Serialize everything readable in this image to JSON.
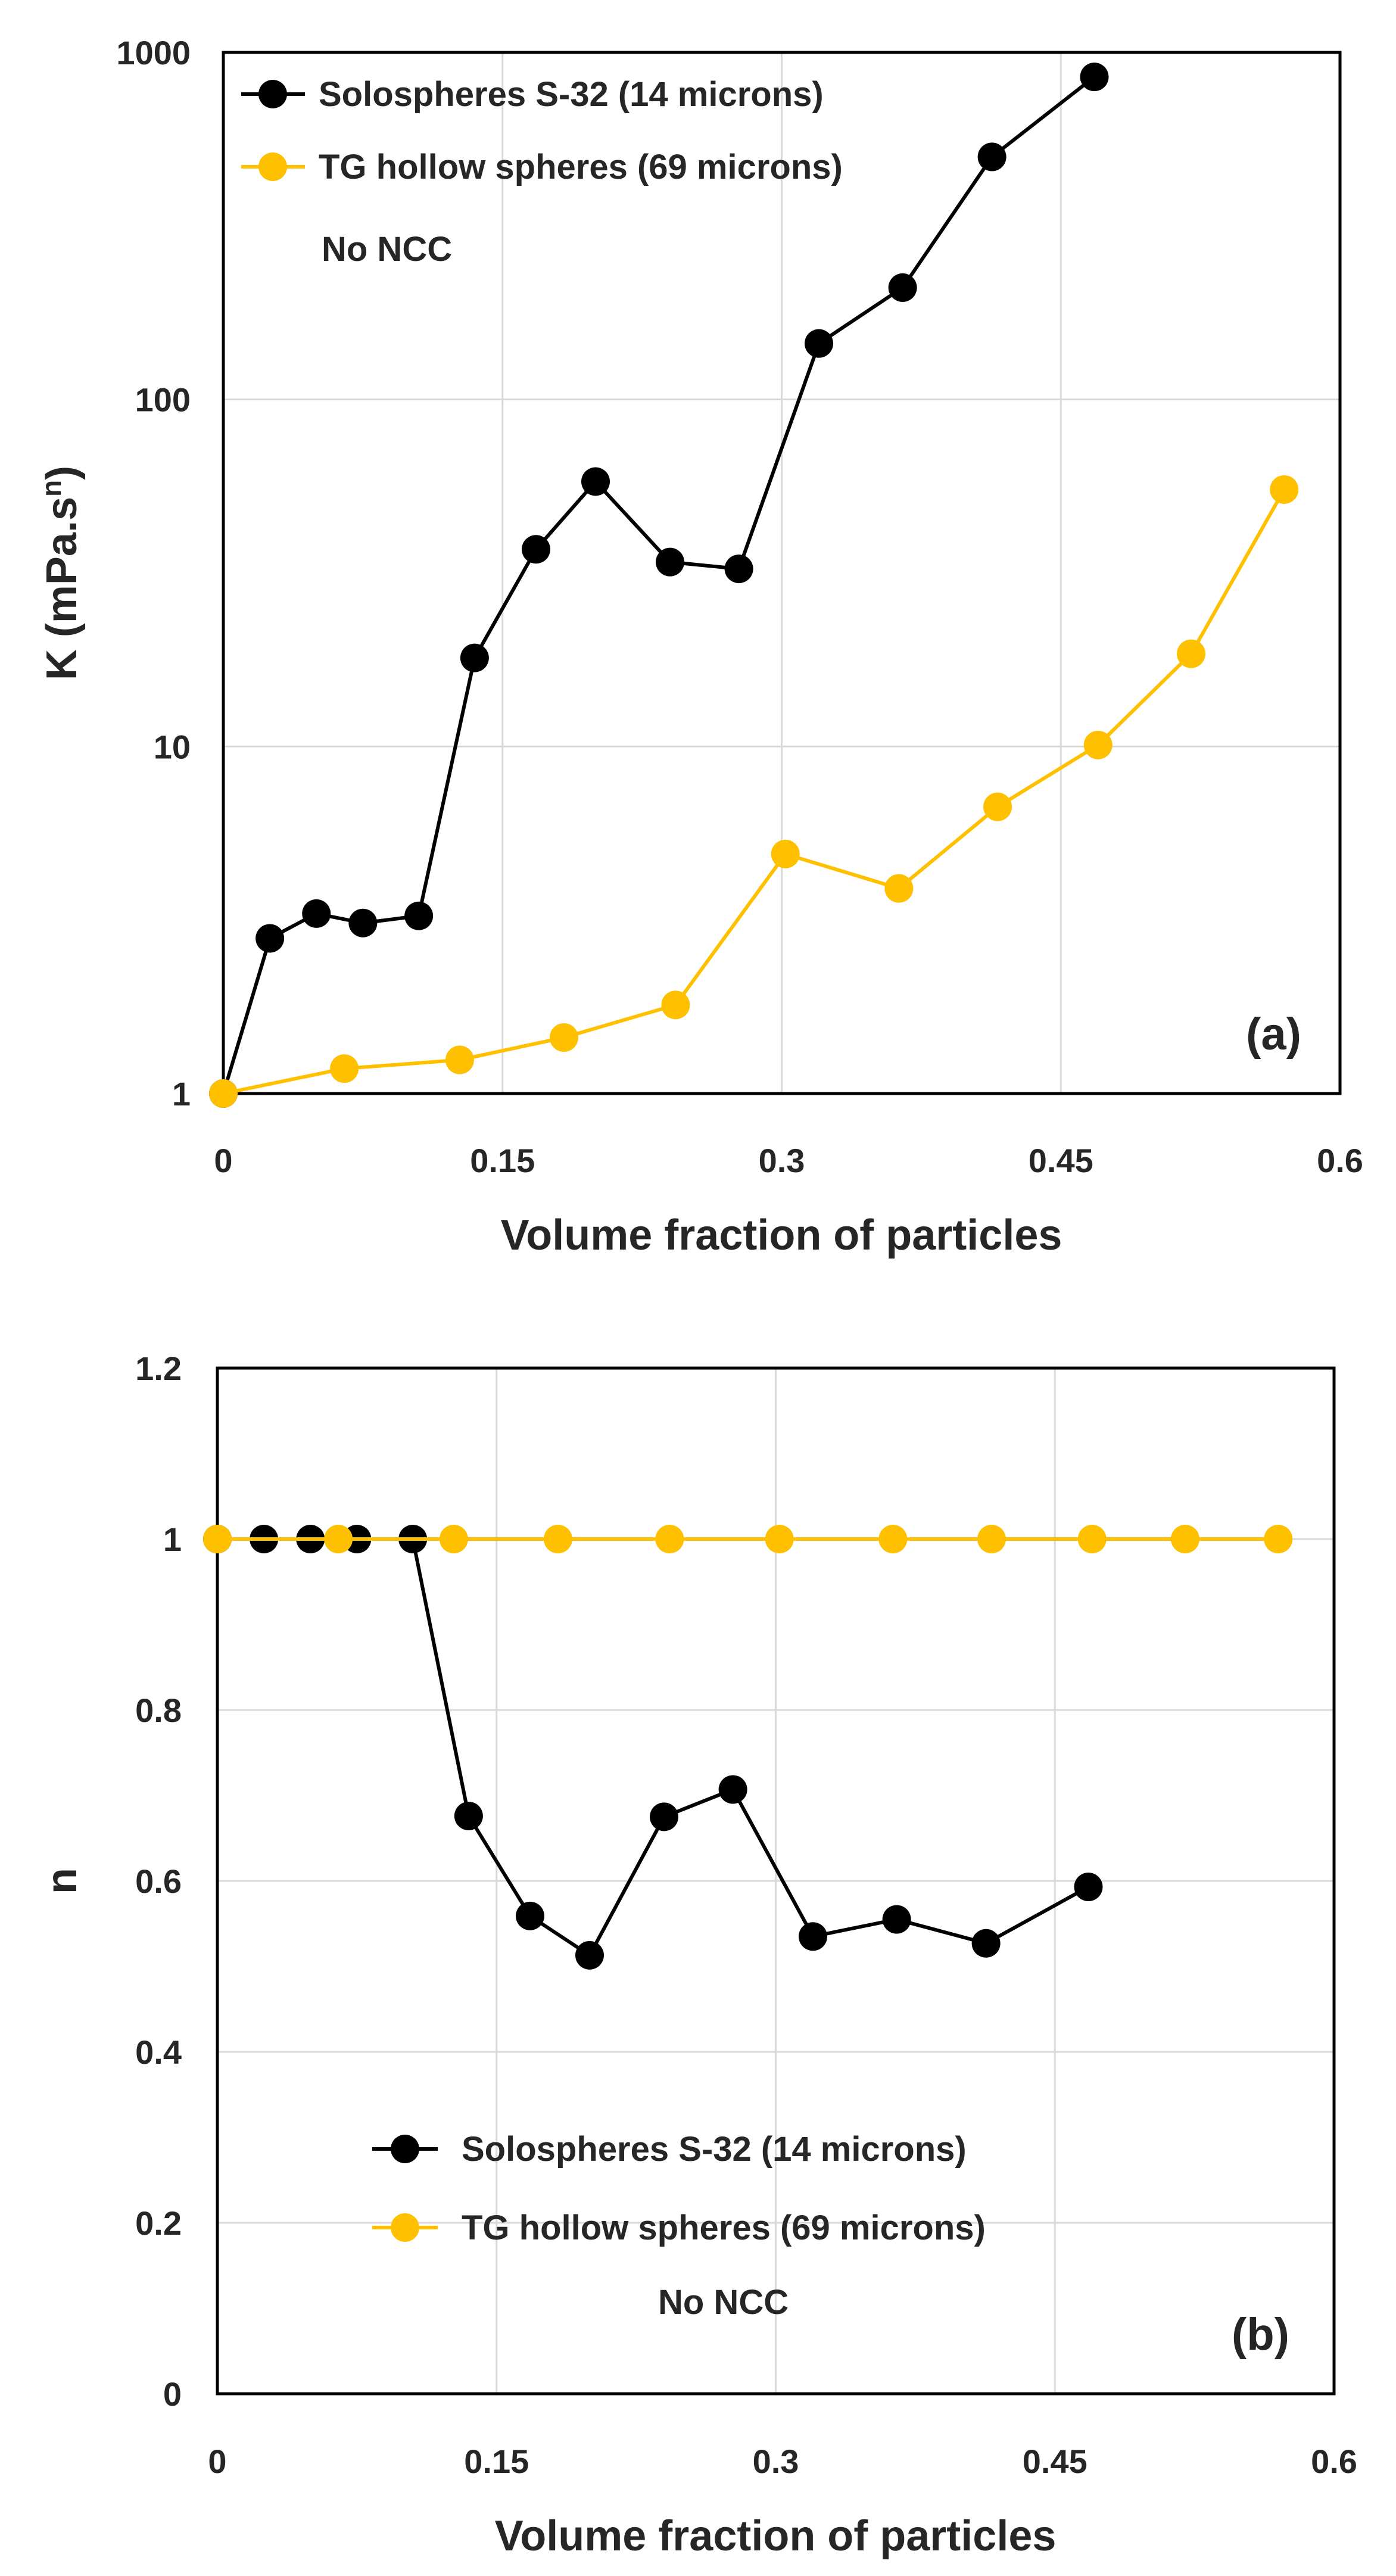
{
  "chart_data": [
    {
      "type": "line",
      "panel_label": "(a)",
      "xlabel": "Volume fraction of particles",
      "ylabel": "K (mPa.s",
      "ylabel_sup": "n",
      "ylabel_close": ")",
      "yscale": "log",
      "xlim": [
        0,
        0.6
      ],
      "ylim": [
        1,
        1000
      ],
      "xticks": [
        0,
        0.15,
        0.3,
        0.45,
        0.6
      ],
      "xtick_labels": [
        "0",
        "0.15",
        "0.3",
        "0.45",
        "0.6"
      ],
      "yticks": [
        1,
        10,
        100,
        1000
      ],
      "ytick_labels": [
        "1",
        "10",
        "100",
        "1000"
      ],
      "grid": true,
      "legend_position": "top-left",
      "annotation": "No NCC",
      "series": [
        {
          "name": "Solospheres S-32 (14 microns)",
          "color": "#000000",
          "x": [
            0,
            0.025,
            0.05,
            0.075,
            0.105,
            0.135,
            0.168,
            0.2,
            0.24,
            0.277,
            0.32,
            0.365,
            0.413,
            0.468
          ],
          "y": [
            1,
            2.8,
            3.3,
            3.1,
            3.25,
            18,
            37,
            58,
            34,
            32.5,
            145,
            210,
            500,
            850
          ]
        },
        {
          "name": "TG hollow spheres (69 microns)",
          "color": "#FFC000",
          "x": [
            0,
            0.065,
            0.127,
            0.183,
            0.243,
            0.302,
            0.363,
            0.416,
            0.47,
            0.52,
            0.57
          ],
          "y": [
            1,
            1.18,
            1.25,
            1.45,
            1.8,
            4.9,
            3.9,
            6.7,
            10.1,
            18.5,
            55
          ]
        }
      ]
    },
    {
      "type": "line",
      "panel_label": "(b)",
      "xlabel": "Volume fraction of particles",
      "ylabel": "n",
      "xlim": [
        0,
        0.6
      ],
      "ylim": [
        0,
        1.2
      ],
      "xticks": [
        0,
        0.15,
        0.3,
        0.45,
        0.6
      ],
      "xtick_labels": [
        "0",
        "0.15",
        "0.3",
        "0.45",
        "0.6"
      ],
      "yticks": [
        0,
        0.2,
        0.4,
        0.6,
        0.8,
        1,
        1.2
      ],
      "ytick_labels": [
        "0",
        "0.2",
        "0.4",
        "0.6",
        "0.8",
        "1",
        "1.2"
      ],
      "grid": true,
      "legend_position": "bottom-center",
      "annotation": "No NCC",
      "series": [
        {
          "name": "Solospheres S-32 (14 microns)",
          "color": "#000000",
          "x": [
            0,
            0.025,
            0.05,
            0.075,
            0.105,
            0.135,
            0.168,
            0.2,
            0.24,
            0.277,
            0.32,
            0.365,
            0.413,
            0.468
          ],
          "y": [
            1,
            1,
            1,
            1,
            1,
            0.676,
            0.559,
            0.513,
            0.675,
            0.707,
            0.535,
            0.555,
            0.527,
            0.593
          ]
        },
        {
          "name": "TG hollow spheres (69 microns)",
          "color": "#FFC000",
          "x": [
            0,
            0.065,
            0.127,
            0.183,
            0.243,
            0.302,
            0.363,
            0.416,
            0.47,
            0.52,
            0.57
          ],
          "y": [
            1,
            1,
            1,
            1,
            1,
            1,
            1,
            1,
            1,
            1,
            1
          ]
        }
      ]
    }
  ]
}
